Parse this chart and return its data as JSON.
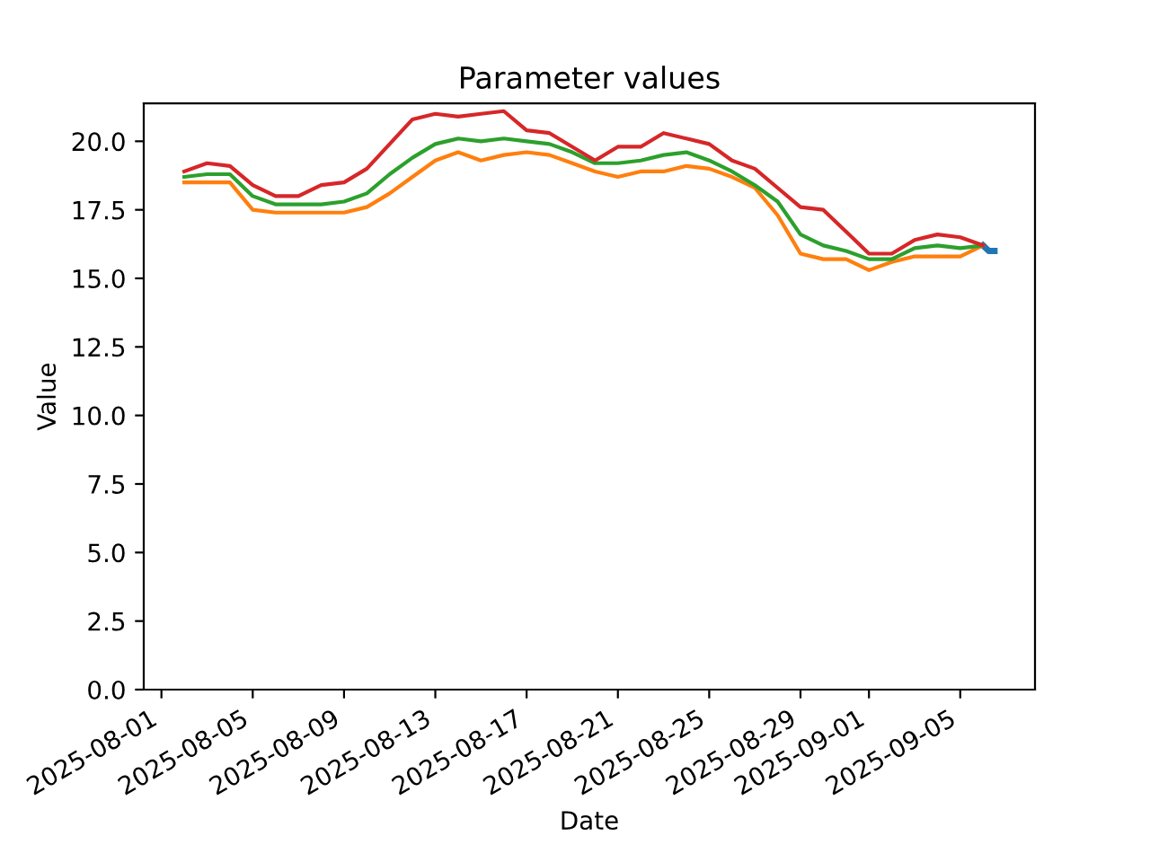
{
  "chart_data": {
    "type": "line",
    "title": "Parameter values",
    "xlabel": "Date",
    "ylabel": "Value",
    "xlim": [
      "2025-07-31T05:24",
      "2025-09-08T06:36"
    ],
    "ylim": [
      0,
      21.38
    ],
    "xticks": [
      "2025-08-01",
      "2025-08-05",
      "2025-08-09",
      "2025-08-13",
      "2025-08-17",
      "2025-08-21",
      "2025-08-25",
      "2025-08-29",
      "2025-09-01",
      "2025-09-05"
    ],
    "yticks": [
      {
        "value": 0,
        "label": "0.0"
      },
      {
        "value": 2.5,
        "label": "2.5"
      },
      {
        "value": 5,
        "label": "5.0"
      },
      {
        "value": 7.5,
        "label": "7.5"
      },
      {
        "value": 10,
        "label": "10.0"
      },
      {
        "value": 12.5,
        "label": "12.5"
      },
      {
        "value": 15,
        "label": "15.0"
      },
      {
        "value": 17.5,
        "label": "17.5"
      },
      {
        "value": 20,
        "label": "20.0"
      }
    ],
    "grid": false,
    "legend": false,
    "series": [
      {
        "color": "#1f77b4",
        "x": [
          "2025-09-06",
          "2025-09-06T06:00",
          "2025-09-06T12:00"
        ],
        "values": [
          16.2,
          16.0,
          16.0
        ]
      },
      {
        "color": "#ff7f0e",
        "values": [
          18.5,
          18.5,
          18.5,
          17.5,
          17.4,
          17.4,
          17.4,
          17.4,
          17.6,
          18.1,
          18.7,
          19.3,
          19.6,
          19.3,
          19.5,
          19.6,
          19.5,
          19.2,
          18.9,
          18.7,
          18.9,
          18.9,
          19.1,
          19.0,
          18.7,
          18.3,
          17.3,
          15.9,
          15.7,
          15.7,
          15.3,
          15.6,
          15.8,
          15.8,
          15.8,
          16.2
        ]
      },
      {
        "color": "#2ca02c",
        "values": [
          18.7,
          18.8,
          18.8,
          18.0,
          17.7,
          17.7,
          17.7,
          17.8,
          18.1,
          18.8,
          19.4,
          19.9,
          20.1,
          20.0,
          20.1,
          20.0,
          19.9,
          19.6,
          19.2,
          19.2,
          19.3,
          19.5,
          19.6,
          19.3,
          18.9,
          18.4,
          17.8,
          16.6,
          16.2,
          16.0,
          15.7,
          15.7,
          16.1,
          16.2,
          16.1,
          16.2
        ]
      },
      {
        "color": "#d62728",
        "values": [
          18.9,
          19.2,
          19.1,
          18.4,
          18.0,
          18.0,
          18.4,
          18.5,
          19.0,
          19.9,
          20.8,
          21.0,
          20.9,
          21.0,
          21.1,
          20.4,
          20.3,
          19.8,
          19.3,
          19.8,
          19.8,
          20.3,
          20.1,
          19.9,
          19.3,
          19.0,
          18.3,
          17.6,
          17.5,
          16.7,
          15.9,
          15.9,
          16.4,
          16.6,
          16.5,
          16.2
        ]
      }
    ],
    "x": [
      "2025-08-02",
      "2025-08-03",
      "2025-08-04",
      "2025-08-05",
      "2025-08-06",
      "2025-08-07",
      "2025-08-08",
      "2025-08-09",
      "2025-08-10",
      "2025-08-11",
      "2025-08-12",
      "2025-08-13",
      "2025-08-14",
      "2025-08-15",
      "2025-08-16",
      "2025-08-17",
      "2025-08-18",
      "2025-08-19",
      "2025-08-20",
      "2025-08-21",
      "2025-08-22",
      "2025-08-23",
      "2025-08-24",
      "2025-08-25",
      "2025-08-26",
      "2025-08-27",
      "2025-08-28",
      "2025-08-29",
      "2025-08-30",
      "2025-08-31",
      "2025-09-01",
      "2025-09-02",
      "2025-09-03",
      "2025-09-04",
      "2025-09-05",
      "2025-09-06"
    ]
  }
}
